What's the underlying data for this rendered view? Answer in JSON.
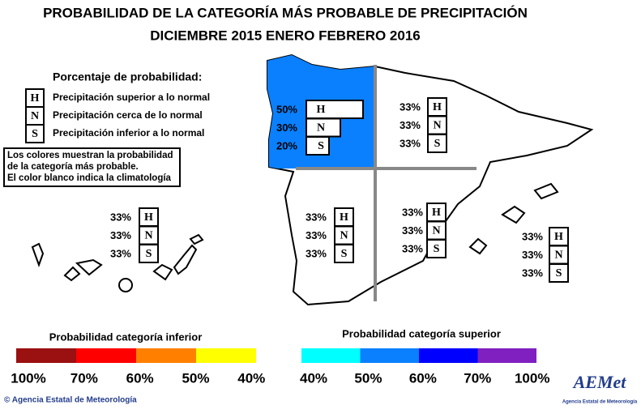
{
  "title": [
    "PROBABILIDAD DE LA CATEGORÍA MÁS PROBABLE DE PRECIPITACIÓN",
    "DICIEMBRE 2015  ENERO  FEBRERO 2016"
  ],
  "legend": {
    "title": "Porcentaje de probabilidad:",
    "items": [
      {
        "letter": "H",
        "text": "Precipitación superior a lo normal"
      },
      {
        "letter": "N",
        "text": "Precipitación cerca de lo normal"
      },
      {
        "letter": "S",
        "text": "Precipitación inferior a lo normal"
      }
    ]
  },
  "note": [
    "Los colores muestran la probabilidad",
    "de la categoría más probable.",
    "El color blanco indica la climatología"
  ],
  "regions": [
    {
      "value_labels": [
        "50%",
        "30%",
        "20%"
      ],
      "values": [
        50,
        30,
        20
      ]
    },
    {
      "value_labels": [
        "33%",
        "33%",
        "33%"
      ]
    },
    {
      "value_labels": [
        "33%",
        "33%",
        "33%"
      ]
    },
    {
      "value_labels": [
        "33%",
        "33%",
        "33%"
      ]
    },
    {
      "value_labels": [
        "33%",
        "33%",
        "33%"
      ]
    },
    {
      "value_labels": [
        "33%",
        "33%",
        "33%"
      ]
    }
  ],
  "scales": [
    {
      "title": "Probabilidad categoría inferior",
      "colors": [
        "#9b1010",
        "#ff0000",
        "#ff8000",
        "#ffff00"
      ],
      "labels": [
        "100%",
        "70%",
        "60%",
        "50%",
        "40%"
      ]
    },
    {
      "title": "Probabilidad categoría superior",
      "colors": [
        "#00ffff",
        "#0a80ff",
        "#0000ff",
        "#8020c0"
      ],
      "labels": [
        "40%",
        "50%",
        "60%",
        "70%",
        "100%"
      ]
    }
  ],
  "footer": "© Agencia Estatal de Meteorología",
  "logo": {
    "name": "AEMet",
    "subtitle": "Agencia Estatal de Meteorología"
  }
}
